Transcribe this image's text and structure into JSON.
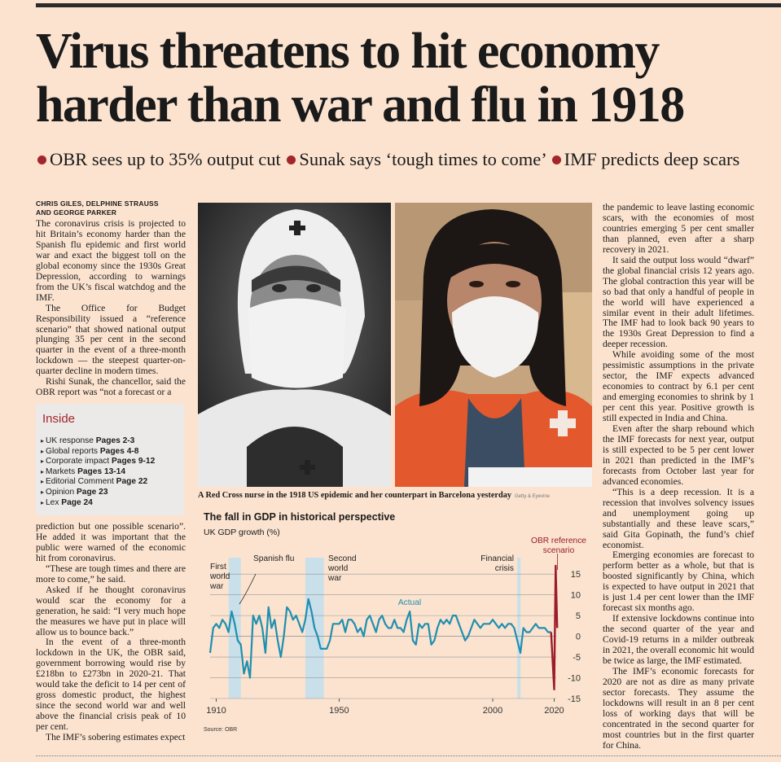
{
  "headline": "Virus threatens to hit economy harder than war and flu in 1918",
  "strap": [
    "OBR sees up to 35% output cut",
    "Sunak says ‘tough times to come’",
    "IMF predicts deep scars"
  ],
  "byline": [
    "CHRIS GILES, DELPHINE STRAUSS",
    "AND GEORGE PARKER"
  ],
  "col1a": [
    "The coronavirus crisis is projected to hit Britain’s economy harder than the Spanish flu epidemic and first world war and exact the biggest toll on the global economy since the 1930s Great Depression, according to warnings from the UK’s fiscal watchdog and the IMF.",
    "The Office for Budget Responsibility issued a “reference scenario” that showed national output plunging 35 per cent in the second quarter in the event of a three-month lockdown — the steepest quarter-on-quarter decline in modern times.",
    "Rishi Sunak, the chancellor, said the OBR report was “not a forecast or a"
  ],
  "col1b": [
    "prediction but one possible scenario”. He added it was important that the public were warned of the economic hit from coronavirus.",
    "“These are tough times and there are more to come,” he said.",
    "Asked if he thought coronavirus would scar the economy for a generation, he said: “I very much hope the measures we have put in place will allow us to bounce back.”",
    "In the event of a three-month lockdown in the UK, the OBR said, government borrowing would rise by £218bn to £273bn in 2020-21. That would take the deficit to 14 per cent of gross domestic product, the highest since the second world war and well above the financial crisis peak of 10 per cent.",
    "The IMF’s sobering estimates expect"
  ],
  "col3": [
    "the pandemic to leave lasting economic scars, with the economies of most countries emerging 5 per cent smaller than planned, even after a sharp recovery in 2021.",
    "It said the output loss would “dwarf” the global financial crisis 12 years ago. The global contraction this year will be so bad that only a handful of people in the world will have experienced a similar event in their adult lifetimes. The IMF had to look back 90 years to the 1930s Great Depression to find a deeper recession.",
    "While avoiding some of the most pessimistic assumptions in the private sector, the IMF expects advanced economies to contract by 6.1 per cent and emerging economies to shrink by 1 per cent this year. Positive growth is still expected in India and China.",
    "Even after the sharp rebound which the IMF forecasts for next year, output is still expected to be 5 per cent lower in 2021 than predicted in the IMF’s forecasts from October last year for advanced economies.",
    "“This is a deep recession. It is a recession that involves solvency issues and unemployment going up substantially and these leave scars,” said Gita Gopinath, the fund’s chief economist.",
    "Emerging economies are forecast to perform better as a whole, but that is boosted significantly by China, which is expected to have output in 2021 that is just 1.4 per cent lower than the IMF forecast six months ago.",
    "If extensive lockdowns continue into the second quarter of the year and Covid-19 returns in a milder outbreak in 2021, the overall economic hit would be twice as large, the IMF estimated.",
    "The IMF’s economic forecasts for 2020 are not as dire as many private sector forecasts. They assume the lockdowns will result in an 8 per cent loss of working days that will be concentrated in the second quarter for most countries but in the first quarter for China."
  ],
  "inside": {
    "title": "Inside",
    "items": [
      {
        "label": "UK response",
        "pages": "Pages 2-3"
      },
      {
        "label": "Global reports",
        "pages": "Pages 4-8"
      },
      {
        "label": "Corporate impact",
        "pages": "Pages 9-12"
      },
      {
        "label": "Markets",
        "pages": "Pages 13-14"
      },
      {
        "label": "Editorial Comment",
        "pages": "Page 22"
      },
      {
        "label": "Opinion",
        "pages": "Page 23"
      },
      {
        "label": "Lex",
        "pages": "Page 24"
      }
    ]
  },
  "caption": "A Red Cross nurse in the 1918 US epidemic and her counterpart in Barcelona yesterday",
  "photo_credit": "Getty & Eyevine",
  "chart_data": {
    "type": "line",
    "title": "The fall in GDP in historical perspective",
    "ylabel": "UK GDP growth (%)",
    "xlim": [
      1908,
      2022
    ],
    "ylim": [
      -15,
      17
    ],
    "x_ticks": [
      1910,
      1950,
      2000,
      2020
    ],
    "y_ticks": [
      15,
      10,
      5,
      0,
      -5,
      -10,
      -15
    ],
    "annotations": {
      "first_world_war": "First world war",
      "spanish_flu": "Spanish flu",
      "second_world_war": "Second world war",
      "financial_crisis": "Financial crisis",
      "actual": "Actual",
      "obr": "OBR reference scenario"
    },
    "shaded_periods": [
      [
        1914,
        1918
      ],
      [
        1939,
        1945
      ],
      [
        2008,
        2009
      ]
    ],
    "colors": {
      "actual": "#1f8fb0",
      "obr": "#9b1c2a",
      "shade": "#c9dfe9",
      "grid": "#999999"
    },
    "series": [
      {
        "name": "Actual",
        "x": [
          1908,
          1909,
          1910,
          1911,
          1912,
          1913,
          1914,
          1915,
          1916,
          1917,
          1918,
          1919,
          1920,
          1921,
          1922,
          1923,
          1924,
          1925,
          1926,
          1927,
          1928,
          1929,
          1930,
          1931,
          1932,
          1933,
          1934,
          1935,
          1936,
          1937,
          1938,
          1939,
          1940,
          1941,
          1942,
          1943,
          1944,
          1945,
          1946,
          1947,
          1948,
          1949,
          1950,
          1951,
          1952,
          1953,
          1954,
          1955,
          1956,
          1957,
          1958,
          1959,
          1960,
          1961,
          1962,
          1963,
          1964,
          1965,
          1966,
          1967,
          1968,
          1969,
          1970,
          1971,
          1972,
          1973,
          1974,
          1975,
          1976,
          1977,
          1978,
          1979,
          1980,
          1981,
          1982,
          1983,
          1984,
          1985,
          1986,
          1987,
          1988,
          1989,
          1990,
          1991,
          1992,
          1993,
          1994,
          1995,
          1996,
          1997,
          1998,
          1999,
          2000,
          2001,
          2002,
          2003,
          2004,
          2005,
          2006,
          2007,
          2008,
          2009,
          2010,
          2011,
          2012,
          2013,
          2014,
          2015,
          2016,
          2017,
          2018,
          2019
        ],
        "y": [
          -4,
          2,
          3,
          2,
          4,
          3,
          1,
          6,
          3,
          -1,
          -2,
          -9,
          -6,
          -10,
          5,
          3,
          5,
          2,
          -4,
          7,
          2,
          4,
          -1,
          -5,
          0,
          7,
          6,
          4,
          5,
          3,
          1,
          4,
          9,
          6,
          2,
          0,
          -3,
          -3,
          -3,
          -1,
          3,
          3,
          3,
          4,
          1,
          4,
          4,
          3,
          1,
          2,
          0,
          4,
          5,
          3,
          1,
          4,
          5,
          3,
          2,
          2,
          4,
          2,
          2,
          1,
          4,
          6,
          -1,
          -2,
          3,
          2,
          3,
          3,
          -2,
          -1,
          2,
          4,
          3,
          4,
          3,
          5,
          5,
          3,
          1,
          -1,
          0,
          2,
          4,
          3,
          2,
          3,
          3,
          3,
          4,
          3,
          2,
          3,
          2,
          3,
          3,
          2,
          -1,
          -4,
          2,
          1,
          1,
          2,
          3,
          2,
          2,
          2,
          1,
          1
        ]
      },
      {
        "name": "OBR reference scenario",
        "x": [
          2019,
          2020,
          2020.5,
          2021
        ],
        "y": [
          1,
          -12.8,
          17,
          2
        ]
      }
    ]
  }
}
